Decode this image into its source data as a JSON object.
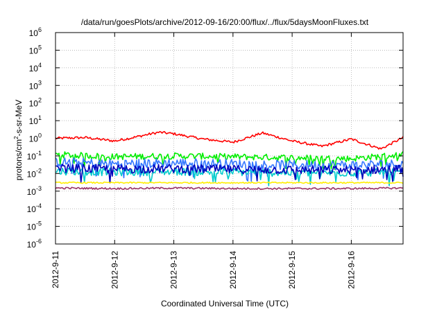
{
  "chart_data": {
    "type": "line",
    "title": "/data/run/goesPlots/archive/2012-09-16/20:00/flux/../flux/5daysMoonFluxes.txt",
    "xlabel": "Coordinated Universal Time (UTC)",
    "ylabel": {
      "prefix": "protons/cm",
      "superscript": "2",
      "suffix": "-s-sr-MeV"
    },
    "yscale": "log",
    "ylim_exponents": [
      -6,
      6
    ],
    "y_tick_exponents": [
      6,
      5,
      4,
      3,
      2,
      1,
      0,
      -1,
      -2,
      -3,
      -4,
      -5,
      -6
    ],
    "y_tick_base": "10",
    "xlim": [
      "2012-09-11",
      "2012-09-16T21:00"
    ],
    "x_tick_labels": [
      "2012-9-11",
      "2012-9-12",
      "2012-9-13",
      "2012-9-14",
      "2012-9-15",
      "2012-9-16"
    ],
    "x_tick_dates": [
      "2012-09-11",
      "2012-09-12",
      "2012-09-13",
      "2012-09-14",
      "2012-09-15",
      "2012-09-16"
    ],
    "grid": true,
    "legend": "none",
    "series": [
      {
        "color": "#ff0000",
        "x": [
          "2012-09-11T00:00",
          "2012-09-11T12:00",
          "2012-09-12T00:00",
          "2012-09-12T06:00",
          "2012-09-12T12:00",
          "2012-09-12T18:00",
          "2012-09-13T00:00",
          "2012-09-13T12:00",
          "2012-09-14T00:00",
          "2012-09-14T12:00",
          "2012-09-15T00:00",
          "2012-09-15T12:00",
          "2012-09-16T00:00",
          "2012-09-16T12:00",
          "2012-09-16T21:00"
        ],
        "values": [
          1.0,
          1.1,
          0.7,
          1.0,
          1.5,
          2.2,
          1.8,
          0.9,
          0.6,
          2.0,
          0.7,
          0.35,
          0.9,
          0.25,
          1.1
        ]
      },
      {
        "color": "#00ee00",
        "x": [
          "2012-09-11T00:00",
          "2012-09-12T00:00",
          "2012-09-13T00:00",
          "2012-09-14T00:00",
          "2012-09-15T00:00",
          "2012-09-16T00:00",
          "2012-09-16T21:00"
        ],
        "values": [
          0.12,
          0.09,
          0.1,
          0.09,
          0.08,
          0.07,
          0.12
        ]
      },
      {
        "color": "#3377ff",
        "x": [
          "2012-09-11T00:00",
          "2012-09-12T00:00",
          "2012-09-13T00:00",
          "2012-09-14T00:00",
          "2012-09-15T00:00",
          "2012-09-16T00:00",
          "2012-09-16T21:00"
        ],
        "values": [
          0.045,
          0.035,
          0.04,
          0.035,
          0.03,
          0.03,
          0.035
        ]
      },
      {
        "color": "#00cccc",
        "x": [
          "2012-09-11T00:00",
          "2012-09-12T00:00",
          "2012-09-13T00:00",
          "2012-09-14T00:00",
          "2012-09-15T00:00",
          "2012-09-16T00:00",
          "2012-09-16T21:00"
        ],
        "values": [
          0.014,
          0.012,
          0.013,
          0.012,
          0.011,
          0.011,
          0.012
        ]
      },
      {
        "color": "#0000bb",
        "x": [
          "2012-09-11T00:00",
          "2012-09-12T00:00",
          "2012-09-13T00:00",
          "2012-09-14T00:00",
          "2012-09-15T00:00",
          "2012-09-16T00:00",
          "2012-09-16T21:00"
        ],
        "values": [
          0.02,
          0.018,
          0.019,
          0.017,
          0.016,
          0.016,
          0.018
        ]
      },
      {
        "color": "#ffee00",
        "x": [
          "2012-09-11T00:00",
          "2012-09-12T00:00",
          "2012-09-13T00:00",
          "2012-09-14T00:00",
          "2012-09-15T00:00",
          "2012-09-16T00:00",
          "2012-09-16T21:00"
        ],
        "values": [
          0.003,
          0.003,
          0.003,
          0.003,
          0.003,
          0.003,
          0.003
        ]
      },
      {
        "color": "#993366",
        "x": [
          "2012-09-11T00:00",
          "2012-09-12T00:00",
          "2012-09-13T00:00",
          "2012-09-14T00:00",
          "2012-09-15T00:00",
          "2012-09-16T00:00",
          "2012-09-16T21:00"
        ],
        "values": [
          0.0015,
          0.0014,
          0.0015,
          0.0014,
          0.0014,
          0.0014,
          0.0015
        ]
      }
    ]
  }
}
